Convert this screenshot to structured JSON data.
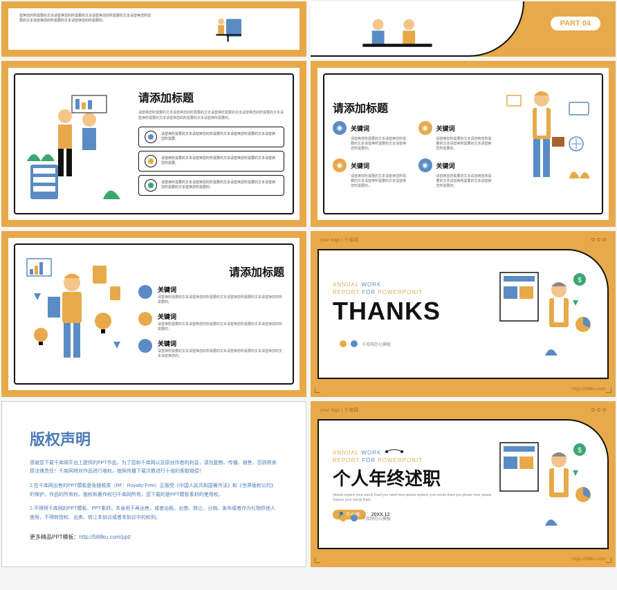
{
  "colors": {
    "orange": "#e8a94a",
    "blue": "#5b8bc4",
    "green": "#3aa672",
    "dark": "#111",
    "teal": "#2a9d8f"
  },
  "s1": {
    "text": "替换您的所需要的文本请替换您的所需要的文本请替换您的所需要的文本请替换您所需要的文本请替换您的所需要的文本请替换您的所需要的。"
  },
  "s2": {
    "part": "PART 04"
  },
  "s3": {
    "title": "请添加标题",
    "sub": "请替换您所需要的文本请替换您的所需要的文本请替换所需要的文本请替换您的所需要的文本请替换所需要的文本请替换您的所需要的文本请替换所需要的。",
    "bullets": [
      {
        "color": "#5b8bc4",
        "text": "请替换所需要的文本请替换您的所需要的文本请替换您所需要的文本请替换您所需要。"
      },
      {
        "color": "#e8a94a",
        "text": "请替换所需要的文本请替换您的所需要的文本请替换您所需要的文本请替换您所需要。"
      },
      {
        "color": "#3aa672",
        "text": "请替换所需要的文本请替换您的所需要的文本请替换您所需要的文本请替换您所需要的文本替换您所需要的。"
      }
    ]
  },
  "s4": {
    "title": "请添加标题",
    "kw": "关键词",
    "desc": "请替换您所需要的文本请替换您所需要的文本请替换所需要的文本请替换您所需要的。",
    "icons": [
      {
        "color": "#5b8bc4"
      },
      {
        "color": "#e8a94a"
      },
      {
        "color": "#e8a94a"
      },
      {
        "color": "#5b8bc4"
      }
    ]
  },
  "s5": {
    "title": "请添加标题",
    "kw": "关键词",
    "items": [
      {
        "color": "#5b8bc4",
        "text": "请替换所需要的文本请替换您的所需要的文本请替换您所需要的文本请替换您的所需要的。"
      },
      {
        "color": "#e8a94a",
        "text": "请替换所需要的文本请替换您的所需要的文本请替换您所需要的文本请替换您的所需要的。"
      },
      {
        "color": "#5b8bc4",
        "text": "请替换所需要的文本请替换您的所需要的文本请替换您所需要的文本请替换您的文本请替换您的。"
      }
    ]
  },
  "thanks": {
    "logo": "your logo | 千库网",
    "annual1": "ANNUAL",
    "annual2": "WORK",
    "annual3": "REPORT",
    "annual4": "FOR",
    "annual5": "POWERPONIT",
    "big": "THANKS",
    "footer": "千库网办公模板",
    "url": "https://588ku.com/"
  },
  "copyright": {
    "title": "版权声明",
    "p1": "感谢您下载千库网平台上提供的PPT作品，为了您和千库网以及原创作者的利益，请勿复制、传播、销售，否则将承担法律责任！千库网将对作品进行维权，按照传播下载次数进行十倍的索取赔偿！",
    "p2": "1.在千库网出售的PPT模板是免版税类（RF：Royalty-Free）正版受《中国人民共和国著作法》和《世界版权公约》的保护，作品的所有权、版权和著作权归千库网所有，您下载的是PPT模板素材的使用权。",
    "p3": "2.不得将千库网的PPT模板、PPT素材，本身用于再出售，或者出租、出借、转让、分销、发布或者作为礼物供他人使用，不得转授权、出卖、转让本协议或者本协议中的权利。",
    "more": "更多精品PPT模板：",
    "link": "http://588ku.com/ppt/"
  },
  "final": {
    "logo": "your logo | 千库网",
    "annual1": "ANNUAL",
    "annual2": "WORK",
    "annual3": "REPORT",
    "annual4": "FOR",
    "annual5": "POWERPONIT",
    "big": "个人年终述职",
    "sub": "please replace your words thant you need here please replace your words thant you please  here please replace your words thant .",
    "author": "千小库",
    "date": "20XX.12",
    "footer": "千库网办公模板",
    "url": "https://588ku.com/"
  }
}
